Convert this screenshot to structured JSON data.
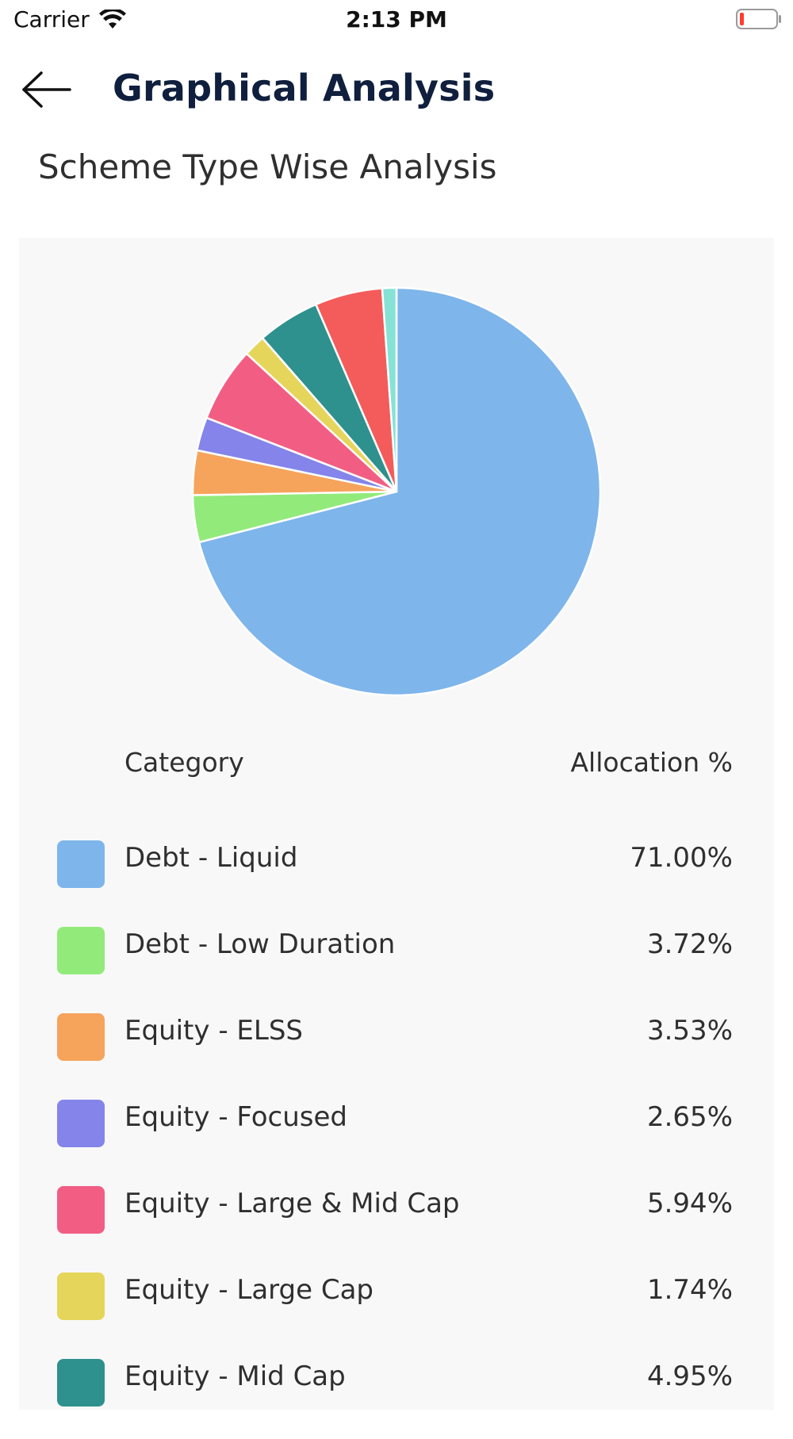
{
  "status_bar": {
    "carrier": "Carrier",
    "time": "2:13 PM",
    "wifi_icon": "wifi-icon",
    "battery_icon": "battery-low-icon"
  },
  "header": {
    "back_icon": "arrow-left-icon",
    "title": "Graphical Analysis"
  },
  "section": {
    "title": "Scheme Type Wise Analysis"
  },
  "table": {
    "col_category": "Category",
    "col_allocation": "Allocation %"
  },
  "legend": [
    {
      "label": "Debt - Liquid",
      "value": "71.00%",
      "color": "#7EB5EB"
    },
    {
      "label": "Debt - Low Duration",
      "value": "3.72%",
      "color": "#92EA7A"
    },
    {
      "label": "Equity - ELSS",
      "value": "3.53%",
      "color": "#F6A45C"
    },
    {
      "label": "Equity - Focused",
      "value": "2.65%",
      "color": "#8484EA"
    },
    {
      "label": "Equity - Large & Mid Cap",
      "value": "5.94%",
      "color": "#F25E83"
    },
    {
      "label": "Equity - Large Cap",
      "value": "1.74%",
      "color": "#E5D55A"
    },
    {
      "label": "Equity - Mid Cap",
      "value": "4.95%",
      "color": "#2E918E"
    }
  ],
  "chart_data": {
    "type": "pie",
    "categories": [
      "Debt - Liquid",
      "Debt - Low Duration",
      "Equity - ELSS",
      "Equity - Focused",
      "Equity - Large & Mid Cap",
      "Equity - Large Cap",
      "Equity - Mid Cap",
      "",
      ""
    ],
    "values": [
      71.0,
      3.72,
      3.53,
      2.65,
      5.94,
      1.74,
      4.95,
      5.35,
      1.12
    ],
    "colors": [
      "#7EB5EB",
      "#92EA7A",
      "#F6A45C",
      "#8484EA",
      "#F25E83",
      "#E5D55A",
      "#2E918E",
      "#F45B5B",
      "#86E2D5"
    ],
    "start": "top",
    "direction": "clockwise"
  }
}
